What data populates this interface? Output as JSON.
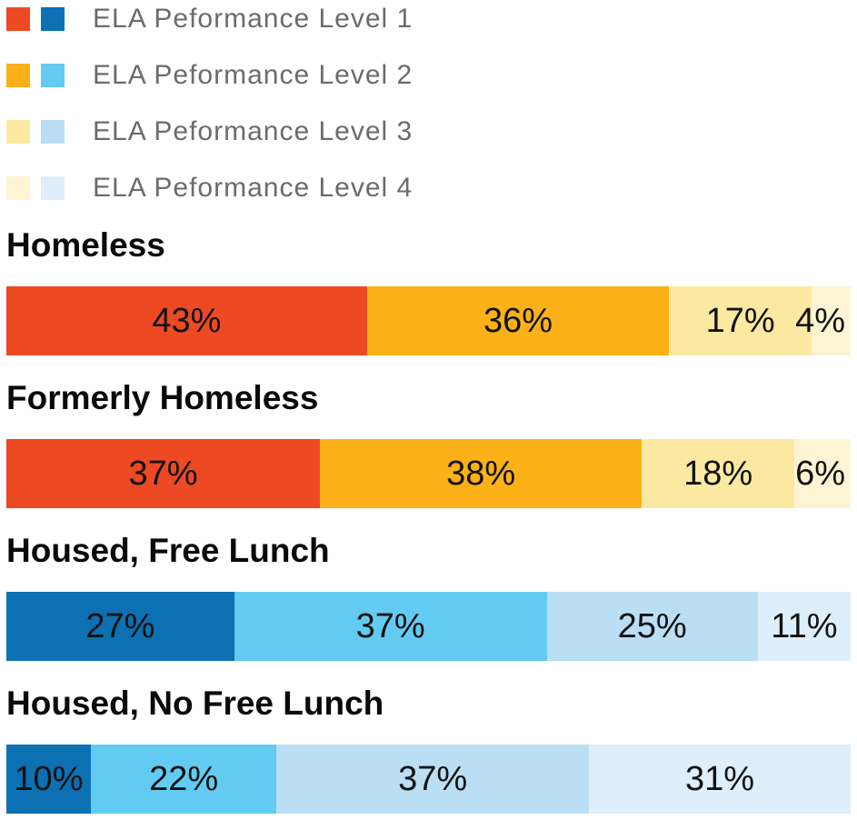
{
  "chart_data": {
    "type": "bar",
    "stacked": true,
    "orientation": "horizontal",
    "value_format": "percent",
    "title": "",
    "xlabel": "",
    "ylabel": "",
    "xlim": [
      0,
      100
    ],
    "grid": false,
    "legend_position": "top",
    "legend": {
      "items": [
        {
          "label": "ELA Peformance Level 1",
          "warm_color": "#ED4A23",
          "cool_color": "#0C70B2"
        },
        {
          "label": "ELA Peformance Level 2",
          "warm_color": "#FBB117",
          "cool_color": "#63CBF1"
        },
        {
          "label": "ELA Peformance Level 3",
          "warm_color": "#FCE9A1",
          "cool_color": "#BADFF4"
        },
        {
          "label": "ELA Peformance Level 4",
          "warm_color": "#FDF4D4",
          "cool_color": "#DEEEFA"
        }
      ]
    },
    "palettes": {
      "warm": [
        "#ED4A23",
        "#FBB117",
        "#FCE9A1",
        "#FDF4D4"
      ],
      "cool": [
        "#0C70B2",
        "#63CBF1",
        "#BADFF4",
        "#DEEEFA"
      ]
    },
    "series_names": [
      "ELA Peformance Level 1",
      "ELA Peformance Level 2",
      "ELA Peformance Level 3",
      "ELA Peformance Level 4"
    ],
    "groups": [
      {
        "label": "Homeless",
        "palette": "warm",
        "values": [
          43,
          36,
          17,
          4
        ],
        "value_labels": [
          "43%",
          "36%",
          "17%",
          "4%"
        ]
      },
      {
        "label": "Formerly Homeless",
        "palette": "warm",
        "values": [
          37,
          38,
          18,
          6
        ],
        "value_labels": [
          "37%",
          "38%",
          "18%",
          "6%"
        ]
      },
      {
        "label": "Housed, Free Lunch",
        "palette": "cool",
        "values": [
          27,
          37,
          25,
          11
        ],
        "value_labels": [
          "27%",
          "37%",
          "25%",
          "11%"
        ]
      },
      {
        "label": "Housed, No Free Lunch",
        "palette": "cool",
        "values": [
          10,
          22,
          37,
          31
        ],
        "value_labels": [
          "10%",
          "22%",
          "37%",
          "31%"
        ]
      }
    ],
    "text_colors": {
      "legend_text": "#6B6B6B",
      "group_label": "#0A0A0A",
      "value_label": "#121212"
    }
  }
}
